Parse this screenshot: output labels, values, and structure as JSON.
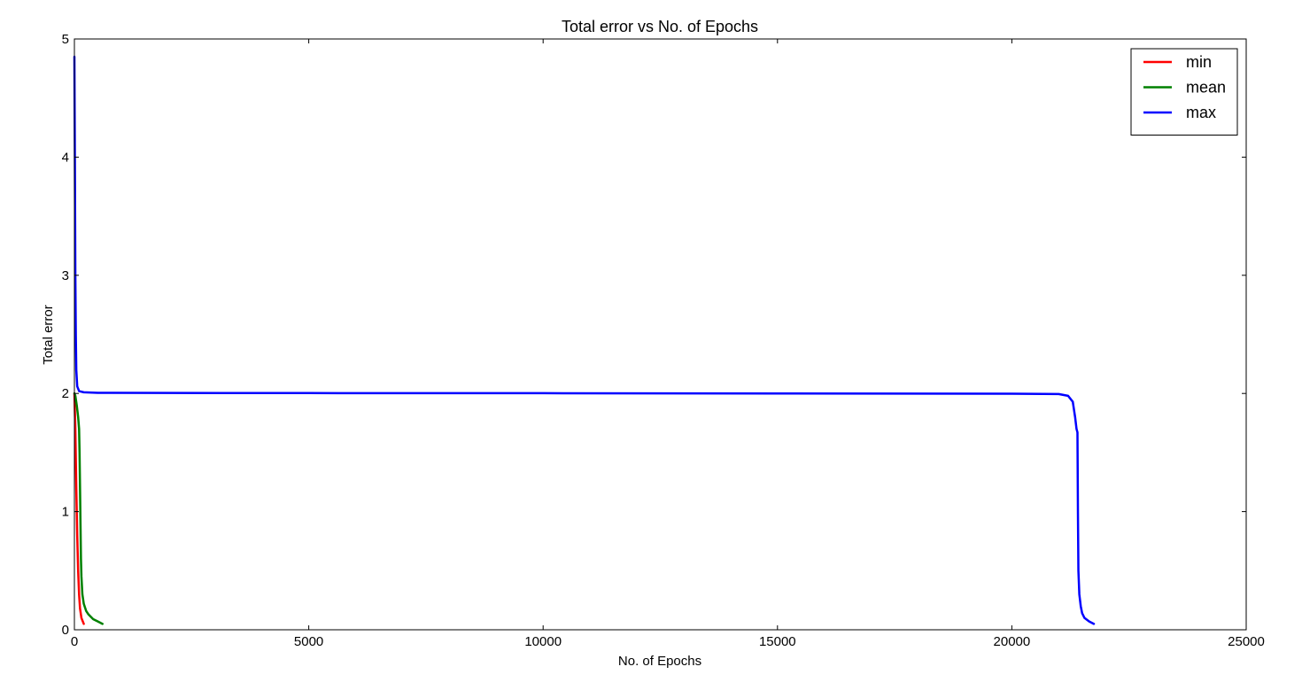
{
  "chart_data": {
    "type": "line",
    "title": "Total error vs No. of Epochs",
    "xlabel": "No. of Epochs",
    "ylabel": "Total error",
    "xlim": [
      0,
      25000
    ],
    "ylim": [
      0,
      5
    ],
    "xticks": [
      0,
      5000,
      10000,
      15000,
      20000,
      25000
    ],
    "yticks": [
      0,
      1,
      2,
      3,
      4,
      5
    ],
    "grid": false,
    "legend_position": "top-right",
    "series": [
      {
        "name": "min",
        "color": "#ff0000",
        "points": [
          [
            0,
            2.0
          ],
          [
            20,
            1.7
          ],
          [
            40,
            1.2
          ],
          [
            60,
            0.8
          ],
          [
            80,
            0.5
          ],
          [
            100,
            0.3
          ],
          [
            120,
            0.18
          ],
          [
            150,
            0.1
          ],
          [
            180,
            0.07
          ],
          [
            200,
            0.05
          ]
        ]
      },
      {
        "name": "mean",
        "color": "#008000",
        "points": [
          [
            0,
            2.0
          ],
          [
            20,
            1.98
          ],
          [
            50,
            1.9
          ],
          [
            80,
            1.8
          ],
          [
            100,
            1.7
          ],
          [
            110,
            1.5
          ],
          [
            120,
            1.2
          ],
          [
            130,
            0.9
          ],
          [
            140,
            0.6
          ],
          [
            150,
            0.45
          ],
          [
            170,
            0.3
          ],
          [
            200,
            0.22
          ],
          [
            250,
            0.16
          ],
          [
            300,
            0.13
          ],
          [
            400,
            0.09
          ],
          [
            500,
            0.07
          ],
          [
            600,
            0.05
          ]
        ]
      },
      {
        "name": "max",
        "color": "#0000ff",
        "points": [
          [
            0,
            4.85
          ],
          [
            10,
            4.0
          ],
          [
            20,
            3.0
          ],
          [
            30,
            2.5
          ],
          [
            40,
            2.2
          ],
          [
            60,
            2.06
          ],
          [
            100,
            2.02
          ],
          [
            200,
            2.01
          ],
          [
            500,
            2.005
          ],
          [
            5000,
            2.003
          ],
          [
            10000,
            2.002
          ],
          [
            15000,
            2.0
          ],
          [
            20000,
            1.998
          ],
          [
            21000,
            1.995
          ],
          [
            21200,
            1.98
          ],
          [
            21300,
            1.93
          ],
          [
            21350,
            1.8
          ],
          [
            21380,
            1.7
          ],
          [
            21400,
            1.67
          ],
          [
            21410,
            1.0
          ],
          [
            21420,
            0.5
          ],
          [
            21440,
            0.3
          ],
          [
            21470,
            0.2
          ],
          [
            21500,
            0.14
          ],
          [
            21550,
            0.1
          ],
          [
            21650,
            0.07
          ],
          [
            21750,
            0.05
          ]
        ]
      }
    ]
  }
}
